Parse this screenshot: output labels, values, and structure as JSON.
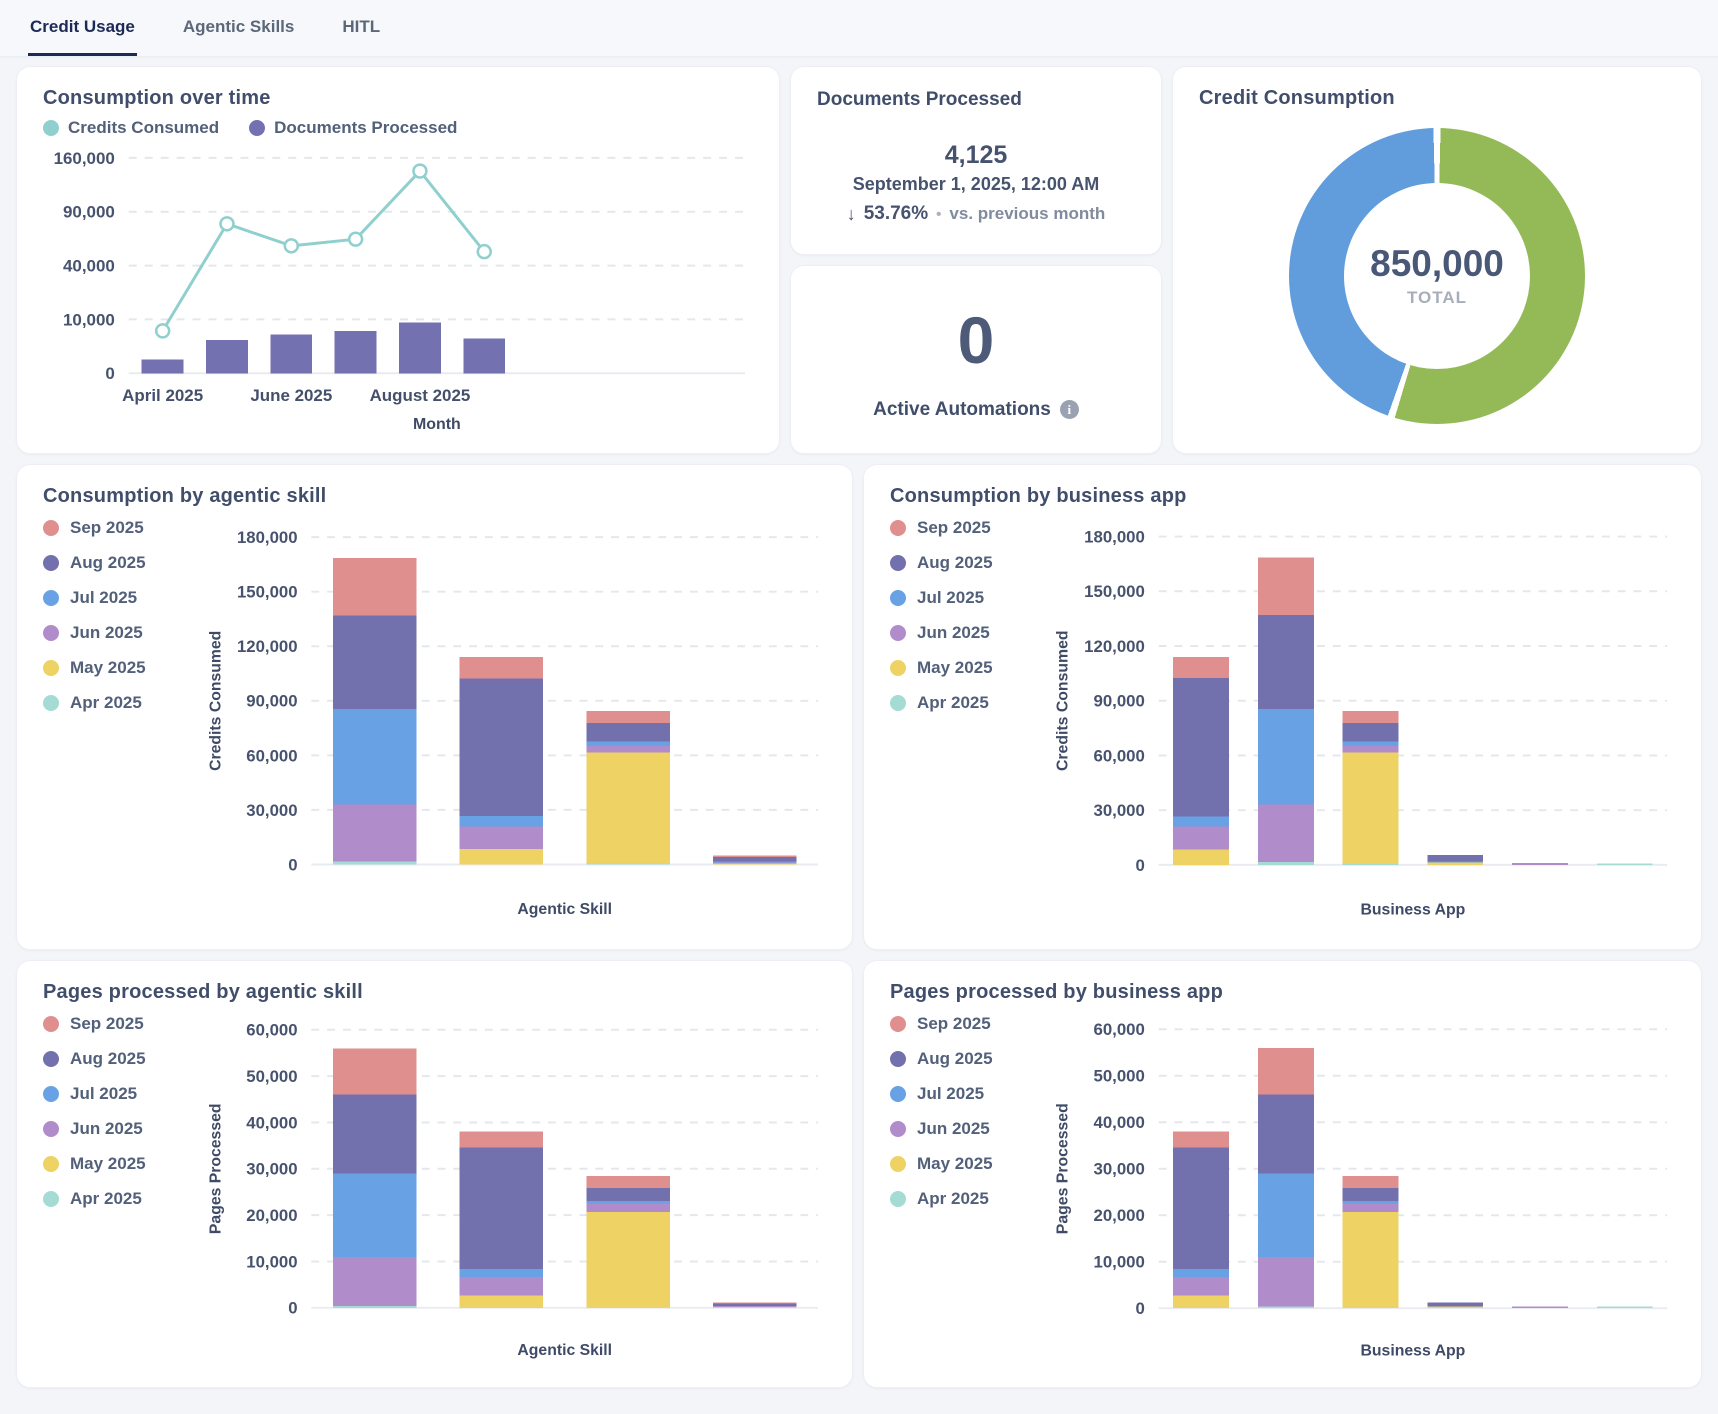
{
  "tabs": [
    {
      "label": "Credit Usage",
      "active": true
    },
    {
      "label": "Agentic Skills",
      "active": false
    },
    {
      "label": "HITL",
      "active": false
    }
  ],
  "cards": {
    "documents_processed": {
      "title": "Documents Processed",
      "value": "4,125",
      "date": "September 1, 2025, 12:00 AM",
      "delta_arrow": "↓",
      "delta_pct": "53.76%",
      "separator": "•",
      "compare_label": "vs. previous month",
      "delta_direction": "down"
    },
    "active_automations": {
      "value": "0",
      "label": "Active Automations",
      "info_icon": "i"
    }
  },
  "colors": {
    "sep": "#e08f8f",
    "aug": "#7370ae",
    "jul": "#68a1e4",
    "jun": "#b18cca",
    "may": "#eed264",
    "apr": "#a5dbd5",
    "teal_line": "#8fd0ce",
    "purple_bar": "#7471b0",
    "donut_green": "#94ba58",
    "donut_blue": "#619ddd",
    "delta_red": "#d25c55",
    "grid": "#e4e7ee",
    "axis": "#e8ebf0"
  },
  "chart_data": [
    {
      "id": "consumption_over_time",
      "type": "line+bar",
      "title": "Consumption over time",
      "xlabel": "Month",
      "y_scale": "sqrt",
      "y_ticks": [
        0,
        10000,
        40000,
        90000,
        160000
      ],
      "x_categories": [
        "April 2025",
        "May 2025",
        "June 2025",
        "July 2025",
        "August 2025",
        "September 2025"
      ],
      "x_tick_labels": [
        {
          "index": 0,
          "label": "April 2025"
        },
        {
          "index": 2,
          "label": "June 2025"
        },
        {
          "index": 4,
          "label": "August 2025"
        }
      ],
      "series": [
        {
          "name": "Credits Consumed",
          "kind": "line",
          "color": "teal_line",
          "values": [
            6200,
            77000,
            56000,
            62000,
            141000,
            51000
          ]
        },
        {
          "name": "Documents Processed",
          "kind": "bar",
          "color": "purple_bar",
          "values": [
            650,
            3800,
            5200,
            6200,
            8900,
            4125
          ]
        }
      ]
    },
    {
      "id": "consumption_by_agentic_skill",
      "type": "stacked-bar",
      "title": "Consumption by agentic skill",
      "xlabel": "Agentic Skill",
      "ylabel": "Credits Consumed",
      "y_ticks": [
        0,
        30000,
        60000,
        90000,
        120000,
        150000,
        180000
      ],
      "categories": [
        "",
        "",
        "",
        ""
      ],
      "series": [
        {
          "name": "Apr 2025",
          "color": "apr",
          "values": [
            1500,
            0,
            500,
            0
          ]
        },
        {
          "name": "May 2025",
          "color": "may",
          "values": [
            0,
            8500,
            61000,
            700
          ]
        },
        {
          "name": "Jun 2025",
          "color": "jun",
          "values": [
            31500,
            12500,
            3600,
            600
          ]
        },
        {
          "name": "Jul 2025",
          "color": "jul",
          "values": [
            52500,
            5600,
            2500,
            400
          ]
        },
        {
          "name": "Aug 2025",
          "color": "aug",
          "values": [
            51500,
            75800,
            10300,
            2500
          ]
        },
        {
          "name": "Sep 2025",
          "color": "sep",
          "values": [
            31500,
            11600,
            6600,
            600
          ]
        }
      ]
    },
    {
      "id": "consumption_by_business_app",
      "type": "stacked-bar",
      "title": "Consumption by business app",
      "xlabel": "Business App",
      "ylabel": "Credits Consumed",
      "y_ticks": [
        0,
        30000,
        60000,
        90000,
        120000,
        150000,
        180000
      ],
      "categories": [
        "",
        "",
        "",
        "",
        "",
        ""
      ],
      "series": [
        {
          "name": "Apr 2025",
          "color": "apr",
          "values": [
            0,
            1500,
            500,
            0,
            0,
            800
          ]
        },
        {
          "name": "May 2025",
          "color": "may",
          "values": [
            8500,
            0,
            61000,
            1500,
            0,
            0
          ]
        },
        {
          "name": "Jun 2025",
          "color": "jun",
          "values": [
            12500,
            31500,
            3600,
            0,
            1000,
            0
          ]
        },
        {
          "name": "Jul 2025",
          "color": "jul",
          "values": [
            5600,
            52500,
            2500,
            500,
            0,
            0
          ]
        },
        {
          "name": "Aug 2025",
          "color": "aug",
          "values": [
            75800,
            51500,
            10300,
            3400,
            0,
            0
          ]
        },
        {
          "name": "Sep 2025",
          "color": "sep",
          "values": [
            11600,
            31500,
            6600,
            0,
            0,
            0
          ]
        }
      ]
    },
    {
      "id": "pages_by_agentic_skill",
      "type": "stacked-bar",
      "title": "Pages processed by agentic skill",
      "xlabel": "Agentic Skill",
      "ylabel": "Pages Processed",
      "y_ticks": [
        0,
        10000,
        20000,
        30000,
        40000,
        50000,
        60000
      ],
      "categories": [
        "",
        "",
        "",
        ""
      ],
      "series": [
        {
          "name": "Apr 2025",
          "color": "apr",
          "values": [
            400,
            0,
            0,
            0
          ]
        },
        {
          "name": "May 2025",
          "color": "may",
          "values": [
            0,
            2700,
            20700,
            300
          ]
        },
        {
          "name": "Jun 2025",
          "color": "jun",
          "values": [
            10600,
            4000,
            1800,
            100
          ]
        },
        {
          "name": "Jul 2025",
          "color": "jul",
          "values": [
            18000,
            1700,
            600,
            0
          ]
        },
        {
          "name": "Aug 2025",
          "color": "aug",
          "values": [
            17000,
            26200,
            2800,
            700
          ]
        },
        {
          "name": "Sep 2025",
          "color": "sep",
          "values": [
            10000,
            3400,
            2500,
            100
          ]
        }
      ]
    },
    {
      "id": "pages_by_business_app",
      "type": "stacked-bar",
      "title": "Pages processed by business app",
      "xlabel": "Business App",
      "ylabel": "Pages Processed",
      "y_ticks": [
        0,
        10000,
        20000,
        30000,
        40000,
        50000,
        60000
      ],
      "categories": [
        "",
        "",
        "",
        "",
        "",
        ""
      ],
      "series": [
        {
          "name": "Apr 2025",
          "color": "apr",
          "values": [
            0,
            400,
            0,
            0,
            0,
            400
          ]
        },
        {
          "name": "May 2025",
          "color": "may",
          "values": [
            2700,
            0,
            20700,
            400,
            0,
            0
          ]
        },
        {
          "name": "Jun 2025",
          "color": "jun",
          "values": [
            4000,
            10600,
            1800,
            0,
            400,
            0
          ]
        },
        {
          "name": "Jul 2025",
          "color": "jul",
          "values": [
            1700,
            18000,
            600,
            0,
            0,
            0
          ]
        },
        {
          "name": "Aug 2025",
          "color": "aug",
          "values": [
            26200,
            17000,
            2800,
            800,
            0,
            0
          ]
        },
        {
          "name": "Sep 2025",
          "color": "sep",
          "values": [
            3400,
            10000,
            2500,
            0,
            0,
            0
          ]
        }
      ]
    },
    {
      "id": "credit_consumption",
      "type": "donut",
      "title": "Credit Consumption",
      "center_value": "850,000",
      "center_label": "TOTAL",
      "slices": [
        {
          "name": "green-segment",
          "color": "donut_green",
          "percent": 55
        },
        {
          "name": "blue-segment",
          "color": "donut_blue",
          "percent": 45
        }
      ],
      "start_angle_deg": 0,
      "direction": "clockwise"
    }
  ]
}
